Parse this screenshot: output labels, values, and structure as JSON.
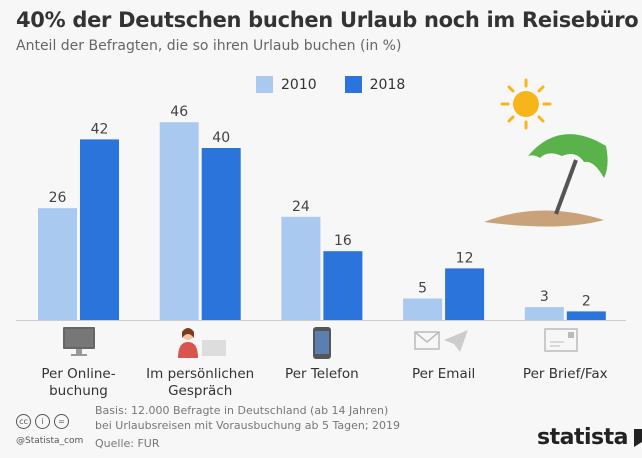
{
  "chart_data": {
    "type": "bar",
    "title": "40% der Deutschen buchen Urlaub noch im Reisebüro",
    "subtitle": "Anteil der Befragten, die so ihren Urlaub buchen (in %)",
    "categories": [
      "Per Online-\nbuchung",
      "Im persönlichen\nGespräch",
      "Per Telefon",
      "Per Email",
      "Per Brief/Fax"
    ],
    "series": [
      {
        "name": "2010",
        "color": "#a9c9f1",
        "values": [
          26,
          46,
          24,
          5,
          3
        ]
      },
      {
        "name": "2018",
        "color": "#2a74db",
        "values": [
          42,
          40,
          16,
          12,
          2
        ]
      }
    ],
    "ylim": [
      0,
      50
    ],
    "grid": false,
    "legend": "top-center"
  },
  "footer": {
    "basis_line1": "Basis: 12.000 Befragte in Deutschland (ab 14 Jahren)",
    "basis_line2": "bei Urlaubsreisen mit Vorausbuchung ab 5 Tagen; 2019",
    "source": "Quelle: FUR",
    "handle": "@Statista_com",
    "logo": "statista"
  },
  "icons": [
    "monitor-icon",
    "person-desk-icon",
    "phone-icon",
    "email-icon",
    "letter-icon"
  ]
}
